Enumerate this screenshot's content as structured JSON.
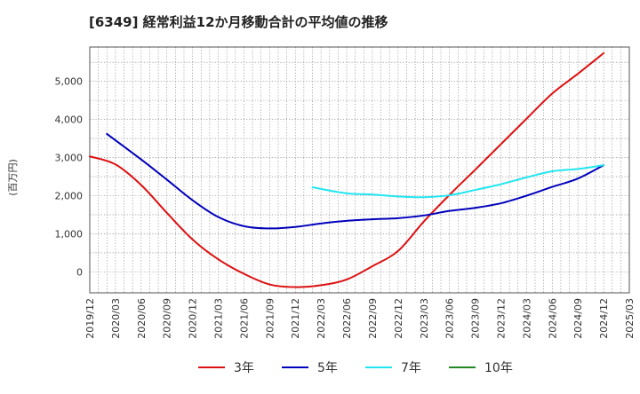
{
  "chart_data": {
    "type": "line",
    "title": "[6349]  経常利益12か月移動合計の平均値の推移",
    "xlabel": "",
    "ylabel": "(百万円)",
    "ylim": [
      -550,
      5900
    ],
    "yticks": [
      0,
      1000,
      2000,
      3000,
      4000,
      5000
    ],
    "ytick_labels": [
      "0",
      "1,000",
      "2,000",
      "3,000",
      "4,000",
      "5,000"
    ],
    "xlim": [
      "2019-12",
      "2025-03"
    ],
    "xtick_labels": [
      "2019/12",
      "2020/03",
      "2020/06",
      "2020/09",
      "2020/12",
      "2021/03",
      "2021/06",
      "2021/09",
      "2021/12",
      "2022/03",
      "2022/06",
      "2022/09",
      "2022/12",
      "2023/03",
      "2023/06",
      "2023/09",
      "2023/12",
      "2024/03",
      "2024/06",
      "2024/09",
      "2024/12",
      "2025/03"
    ],
    "grid": true,
    "legend_position": "bottom",
    "series": [
      {
        "name": "3年",
        "color": "#dd1111",
        "points": [
          [
            "2019-12",
            3030
          ],
          [
            "2020-03",
            2820
          ],
          [
            "2020-06",
            2280
          ],
          [
            "2020-09",
            1550
          ],
          [
            "2020-12",
            850
          ],
          [
            "2021-03",
            330
          ],
          [
            "2021-06",
            -50
          ],
          [
            "2021-09",
            -330
          ],
          [
            "2021-12",
            -400
          ],
          [
            "2022-03",
            -350
          ],
          [
            "2022-06",
            -200
          ],
          [
            "2022-09",
            150
          ],
          [
            "2022-12",
            550
          ],
          [
            "2023-03",
            1320
          ],
          [
            "2023-06",
            2020
          ],
          [
            "2023-09",
            2680
          ],
          [
            "2023-12",
            3350
          ],
          [
            "2024-03",
            4020
          ],
          [
            "2024-06",
            4680
          ],
          [
            "2024-09",
            5200
          ],
          [
            "2024-12",
            5740
          ]
        ]
      },
      {
        "name": "5年",
        "color": "#0000bb",
        "points": [
          [
            "2020-02",
            3620
          ],
          [
            "2020-06",
            2950
          ],
          [
            "2020-09",
            2420
          ],
          [
            "2020-12",
            1880
          ],
          [
            "2021-03",
            1440
          ],
          [
            "2021-06",
            1200
          ],
          [
            "2021-09",
            1140
          ],
          [
            "2021-12",
            1180
          ],
          [
            "2022-03",
            1270
          ],
          [
            "2022-06",
            1340
          ],
          [
            "2022-09",
            1380
          ],
          [
            "2022-12",
            1410
          ],
          [
            "2023-03",
            1480
          ],
          [
            "2023-06",
            1600
          ],
          [
            "2023-09",
            1680
          ],
          [
            "2023-12",
            1800
          ],
          [
            "2024-03",
            2000
          ],
          [
            "2024-06",
            2230
          ],
          [
            "2024-09",
            2450
          ],
          [
            "2024-12",
            2800
          ]
        ]
      },
      {
        "name": "7年",
        "color": "#22e5f0",
        "points": [
          [
            "2022-02",
            2220
          ],
          [
            "2022-06",
            2060
          ],
          [
            "2022-09",
            2030
          ],
          [
            "2022-12",
            1980
          ],
          [
            "2023-03",
            1960
          ],
          [
            "2023-06",
            2010
          ],
          [
            "2023-09",
            2150
          ],
          [
            "2023-12",
            2300
          ],
          [
            "2024-03",
            2480
          ],
          [
            "2024-06",
            2640
          ],
          [
            "2024-09",
            2700
          ],
          [
            "2024-12",
            2800
          ]
        ]
      },
      {
        "name": "10年",
        "color": "#228822",
        "points": []
      }
    ]
  }
}
